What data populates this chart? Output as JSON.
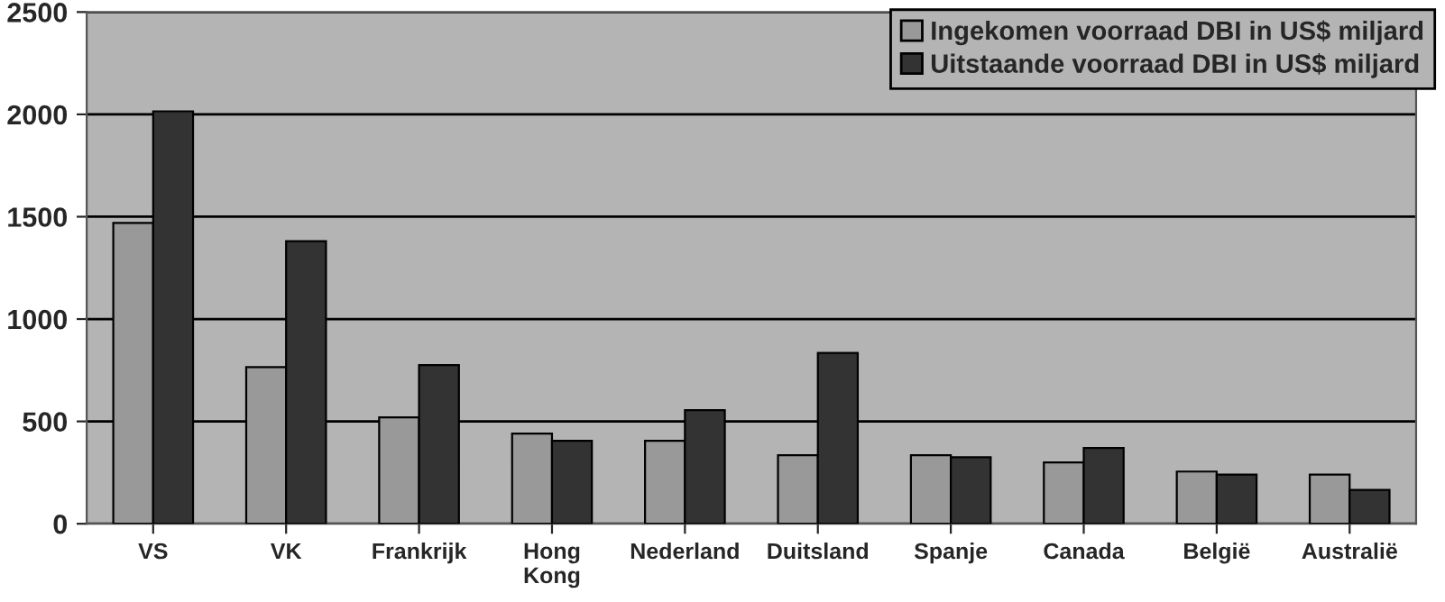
{
  "chart_data": {
    "type": "bar",
    "categories": [
      "VS",
      "VK",
      "Frankrijk",
      "Hong\nKong",
      "Nederland",
      "Duitsland",
      "Spanje",
      "Canada",
      "België",
      "Australië"
    ],
    "series": [
      {
        "name": "Ingekomen voorraad DBI in US$ miljard",
        "color": "#999999",
        "values": [
          1470,
          765,
          520,
          440,
          405,
          335,
          335,
          300,
          255,
          240
        ]
      },
      {
        "name": "Uitstaande voorraad DBI in US$ miljard",
        "color": "#333333",
        "values": [
          2015,
          1380,
          775,
          405,
          555,
          835,
          325,
          370,
          240,
          165
        ]
      }
    ],
    "ylim": [
      0,
      2500
    ],
    "yticks": [
      0,
      500,
      1000,
      1500,
      2000,
      2500
    ],
    "grid": "y",
    "legend": "top right"
  }
}
